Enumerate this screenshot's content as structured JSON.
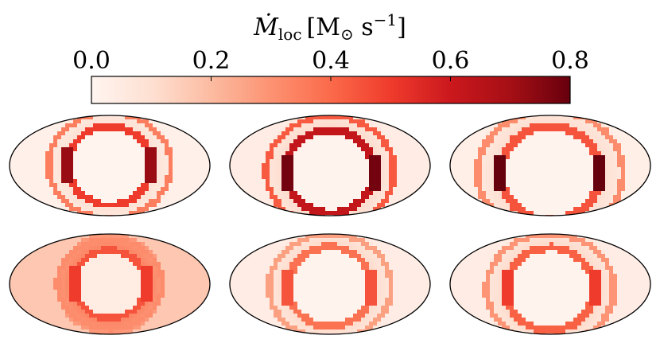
{
  "chart_data": {
    "type": "heatmap",
    "colorbar": {
      "label": {
        "symbol": "Ṁ",
        "subscript": "loc",
        "unit_prefix": "[M",
        "unit_sub": "⊙",
        "unit_mid": " s",
        "unit_sup": "−1",
        "unit_suffix": "]"
      },
      "range": [
        0.0,
        0.8
      ],
      "ticks": [
        0.0,
        0.2,
        0.4,
        0.6,
        0.8
      ],
      "tick_labels": [
        "0.0",
        "0.2",
        "0.4",
        "0.6",
        "0.8"
      ],
      "colormap": "Reds"
    },
    "panels": [
      {
        "projection": "mollweide",
        "background": 0.04,
        "ring_value": 0.5,
        "ring_scale": 0.42,
        "ring_y": 0.0,
        "hotspot": 0.72
      },
      {
        "projection": "mollweide",
        "background": 0.06,
        "ring_value": 0.62,
        "ring_scale": 0.44,
        "ring_y": 0.12,
        "hotspot": 0.78
      },
      {
        "projection": "mollweide",
        "background": 0.05,
        "ring_value": 0.45,
        "ring_scale": 0.5,
        "ring_y": 0.15,
        "hotspot": 0.8
      },
      {
        "projection": "mollweide",
        "background": 0.28,
        "ring_value": 0.45,
        "ring_scale": 0.36,
        "ring_y": 0.0,
        "hotspot": 0.5
      },
      {
        "projection": "mollweide",
        "background": 0.06,
        "ring_value": 0.38,
        "ring_scale": 0.42,
        "ring_y": 0.05,
        "hotspot": 0.45
      },
      {
        "projection": "mollweide",
        "background": 0.06,
        "ring_value": 0.42,
        "ring_scale": 0.44,
        "ring_y": 0.1,
        "hotspot": 0.5
      }
    ]
  }
}
